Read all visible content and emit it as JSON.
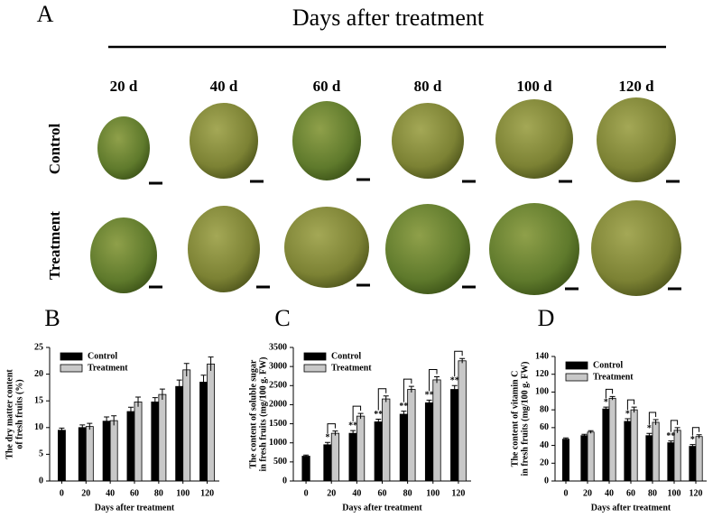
{
  "panel_a": {
    "label": "A",
    "title": "Days after treatment",
    "days": [
      "20 d",
      "40 d",
      "60 d",
      "80 d",
      "100 d",
      "120 d"
    ],
    "rows": [
      "Control",
      "Treatment"
    ]
  },
  "chart_data": [
    {
      "type": "bar",
      "label": "B",
      "ylabel": [
        "The dry matter content",
        "of fresh fruits (%)"
      ],
      "xlabel": "Days after treatment",
      "categories": [
        "0",
        "20",
        "40",
        "60",
        "80",
        "100",
        "120"
      ],
      "series": [
        {
          "name": "Control",
          "color": "#000000",
          "values": [
            9.5,
            10,
            11.2,
            13,
            14.8,
            17.7,
            18.5
          ],
          "errors": [
            0.4,
            0.5,
            0.8,
            0.8,
            0.8,
            1.2,
            1.3
          ]
        },
        {
          "name": "Treatment",
          "color": "#c8c8c8",
          "values": [
            null,
            10.2,
            11.3,
            14.8,
            16.2,
            20.8,
            21.9
          ],
          "errors": [
            null,
            0.6,
            0.9,
            0.9,
            1.0,
            1.2,
            1.3
          ]
        }
      ],
      "ylim": [
        0,
        25
      ],
      "yticks": [
        0,
        5,
        10,
        15,
        20,
        25
      ],
      "legend": "upper left"
    },
    {
      "type": "bar",
      "label": "C",
      "ylabel": [
        "The content of soluble sugar",
        "in fresh fruits (mg/100 g. FW)"
      ],
      "xlabel": "Days after treatment",
      "categories": [
        "0",
        "20",
        "40",
        "60",
        "80",
        "100",
        "120"
      ],
      "series": [
        {
          "name": "Control",
          "color": "#000000",
          "values": [
            650,
            950,
            1250,
            1550,
            1750,
            2050,
            2400
          ],
          "errors": [
            30,
            60,
            70,
            70,
            80,
            70,
            100
          ]
        },
        {
          "name": "Treatment",
          "color": "#c8c8c8",
          "values": [
            null,
            1250,
            1700,
            2150,
            2400,
            2650,
            3150
          ],
          "errors": [
            null,
            60,
            70,
            80,
            80,
            80,
            60
          ]
        }
      ],
      "significance": [
        null,
        "*",
        "**",
        "**",
        "**",
        "**",
        "**"
      ],
      "ylim": [
        0,
        3500
      ],
      "yticks": [
        0,
        500,
        1000,
        1500,
        2000,
        2500,
        3000,
        3500
      ],
      "legend": "upper left"
    },
    {
      "type": "bar",
      "label": "D",
      "ylabel": [
        "The content of vitamin C",
        "in fresh fruits (mg/100 g. FW)"
      ],
      "xlabel": "Days after treatment",
      "categories": [
        "0",
        "20",
        "40",
        "60",
        "80",
        "100",
        "120"
      ],
      "series": [
        {
          "name": "Control",
          "color": "#000000",
          "values": [
            47,
            51,
            81,
            67,
            51,
            43,
            39
          ],
          "errors": [
            1.5,
            1.5,
            2,
            3,
            2.5,
            2,
            2
          ]
        },
        {
          "name": "Treatment",
          "color": "#c8c8c8",
          "values": [
            null,
            55,
            93,
            80,
            66,
            57,
            50
          ],
          "errors": [
            null,
            1.5,
            2,
            3,
            3,
            3,
            2
          ]
        }
      ],
      "significance": [
        null,
        null,
        "*",
        "*",
        "*",
        "**",
        "*"
      ],
      "ylim": [
        0,
        140
      ],
      "yticks": [
        0,
        20,
        40,
        60,
        80,
        100,
        120,
        140
      ],
      "legend": "upper left"
    }
  ]
}
